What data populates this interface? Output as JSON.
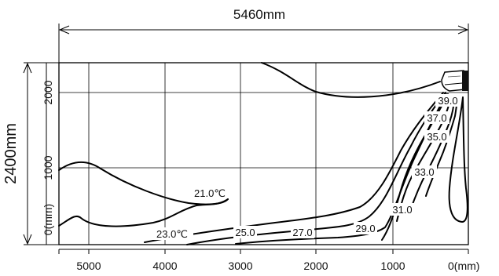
{
  "dimensions": {
    "width_label": "5460mm",
    "height_label": "2400mm"
  },
  "x_axis": {
    "ticks": [
      "5000",
      "4000",
      "3000",
      "2000",
      "1000"
    ],
    "end_label": "0(mm)"
  },
  "y_axis": {
    "ticks": [
      "2000",
      "1000"
    ],
    "zero_label": "0(mm)"
  },
  "isotherms": {
    "t21": "21.0℃",
    "t23": "23.0℃",
    "t25": "25.0",
    "t27": "27.0",
    "t29": "29.0",
    "t31": "31.0",
    "t33": "33.0",
    "t35": "35.0",
    "t37": "37.0",
    "t39": "39.0"
  },
  "icons": {
    "unit": "air-conditioner-icon"
  }
}
